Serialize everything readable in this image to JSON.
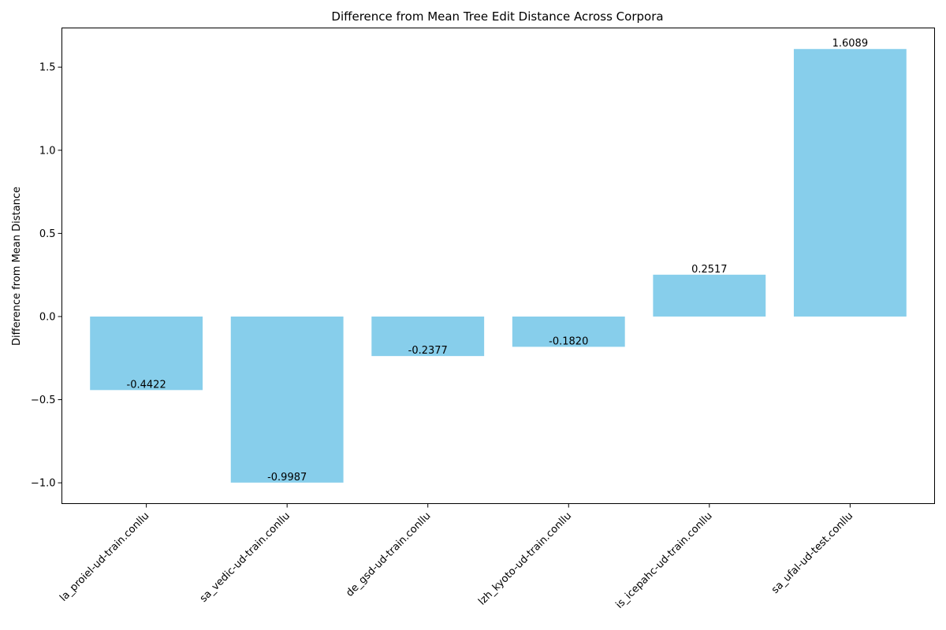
{
  "chart_data": {
    "type": "bar",
    "title": "Difference from Mean Tree Edit Distance Across Corpora",
    "xlabel": "",
    "ylabel": "Difference from Mean Distance",
    "categories": [
      "la_proiel-ud-train.conllu",
      "sa_vedic-ud-train.conllu",
      "de_gsd-ud-train.conllu",
      "lzh_kyoto-ud-train.conllu",
      "is_icepahc-ud-train.conllu",
      "sa_ufal-ud-test.conllu"
    ],
    "values": [
      -0.4422,
      -0.9987,
      -0.2377,
      -0.182,
      0.2517,
      1.6089
    ],
    "data_labels": [
      "-0.4422",
      "-0.9987",
      "-0.2377",
      "-0.1820",
      "0.2517",
      "1.6089"
    ],
    "ylim": [
      -1.125,
      1.7355
    ],
    "yticks": [
      -1.0,
      -0.5,
      0.0,
      0.5,
      1.0,
      1.5
    ],
    "ytick_labels": [
      "−1.0",
      "−0.5",
      "0.0",
      "0.5",
      "1.0",
      "1.5"
    ],
    "bar_color": "#87CEEB",
    "grid": false
  }
}
